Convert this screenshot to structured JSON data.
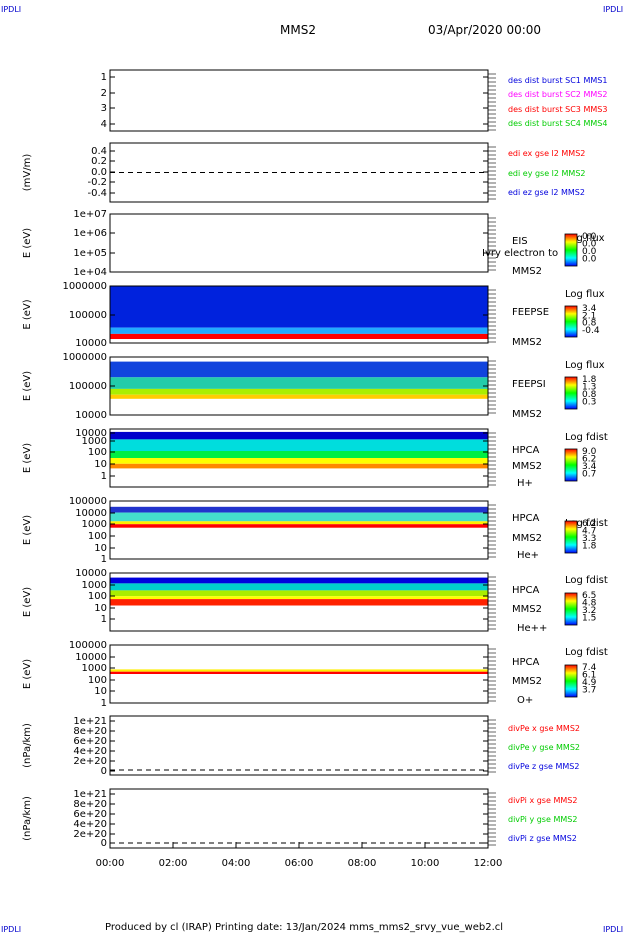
{
  "corner_label": "IPDLI",
  "header": {
    "spacecraft": "MMS2",
    "date": "03/Apr/2020 00:00"
  },
  "footer": "Produced by cl (IRAP)   Printing date: 13/Jan/2024   mms_mms2_srvy_vue_web2.cl",
  "time_axis": {
    "ticks": [
      "00:00",
      "02:00",
      "04:00",
      "06:00",
      "08:00",
      "10:00",
      "12:00"
    ]
  },
  "colors": {
    "blue": "#0000dd",
    "magenta": "#ff00ff",
    "red": "#ff0000",
    "green": "#00cc00",
    "purple": "#0000aa"
  },
  "chart_data": [
    {
      "type": "line",
      "panel": "des-dist-burst",
      "ylabel": "",
      "yticks": [
        "1",
        "2",
        "3",
        "4"
      ],
      "ylim": [
        0.7,
        4.3
      ],
      "legend": [
        {
          "text": "des dist burst SC1 MMS1",
          "color": "#0000dd"
        },
        {
          "text": "des dist burst SC2 MMS2",
          "color": "#ff00ff"
        },
        {
          "text": "des dist burst SC3 MMS3",
          "color": "#ff0000"
        },
        {
          "text": "des dist burst SC4 MMS4",
          "color": "#00cc00"
        }
      ],
      "series": []
    },
    {
      "type": "line",
      "panel": "edi-e",
      "ylabel": "(mV/m)",
      "yticks": [
        "0.4",
        "0.2",
        "0.0",
        "-0.2",
        "-0.4"
      ],
      "ylim": [
        -0.55,
        0.55
      ],
      "zero_line": true,
      "legend": [
        {
          "text": "edi ex gse l2 MMS2",
          "color": "#ff0000"
        },
        {
          "text": "edi ey gse l2 MMS2",
          "color": "#00cc00"
        },
        {
          "text": "edi ez gse l2 MMS2",
          "color": "#0000dd"
        }
      ],
      "series": []
    },
    {
      "type": "heatmap",
      "panel": "eis",
      "ylabel": "E (eV)",
      "yticks": [
        "1e+07",
        "1e+06",
        "1e+05",
        "1e+04"
      ],
      "log": true,
      "labels": [
        "EIS",
        "MMS2"
      ],
      "overlay_text": "Ivry electron to",
      "colorbar": {
        "title": "Log flux",
        "ticks": [
          "0.0",
          "0.0",
          "0.0",
          "0.0"
        ]
      },
      "empty": true
    },
    {
      "type": "heatmap",
      "panel": "feeps-e",
      "ylabel": "E (eV)",
      "yticks": [
        "1000000",
        "100000",
        "10000"
      ],
      "log": true,
      "labels": [
        "FEEPSE",
        "MMS2"
      ],
      "colorbar": {
        "title": "Log flux",
        "ticks": [
          "3.4",
          "2.1",
          "0.8",
          "-0.4"
        ]
      }
    },
    {
      "type": "heatmap",
      "panel": "feeps-i",
      "ylabel": "E (eV)",
      "yticks": [
        "1000000",
        "100000",
        "10000"
      ],
      "log": true,
      "labels": [
        "FEEPSI",
        "MMS2"
      ],
      "colorbar": {
        "title": "Log flux",
        "ticks": [
          "1.8",
          "1.3",
          "0.8",
          "0.3"
        ]
      }
    },
    {
      "type": "heatmap",
      "panel": "hpca-h",
      "ylabel": "E (eV)",
      "yticks": [
        "10000",
        "1000",
        "100",
        "10",
        "1"
      ],
      "log": true,
      "labels": [
        "HPCA",
        "MMS2",
        "H+"
      ],
      "colorbar": {
        "title": "Log fdist",
        "ticks": [
          "9.0",
          "6.2",
          "3.4",
          "0.7"
        ]
      }
    },
    {
      "type": "heatmap",
      "panel": "hpca-he",
      "ylabel": "E (eV)",
      "yticks": [
        "100000",
        "10000",
        "1000",
        "100",
        "10",
        "1"
      ],
      "log": true,
      "labels": [
        "HPCA",
        "MMS2",
        "He+"
      ],
      "colorbar": {
        "title": "Log fdist",
        "ticks": [
          "6.2",
          "4.7",
          "3.3",
          "1.8"
        ]
      }
    },
    {
      "type": "heatmap",
      "panel": "hpca-he2",
      "ylabel": "E (eV)",
      "yticks": [
        "10000",
        "1000",
        "100",
        "10",
        "1"
      ],
      "log": true,
      "labels": [
        "HPCA",
        "MMS2",
        "He++"
      ],
      "colorbar": {
        "title": "Log fdist",
        "ticks": [
          "6.5",
          "4.8",
          "3.2",
          "1.5"
        ]
      }
    },
    {
      "type": "heatmap",
      "panel": "hpca-o",
      "ylabel": "E (eV)",
      "yticks": [
        "100000",
        "10000",
        "1000",
        "100",
        "10",
        "1"
      ],
      "log": true,
      "labels": [
        "HPCA",
        "MMS2",
        "O+"
      ],
      "colorbar": {
        "title": "Log fdist",
        "ticks": [
          "7.4",
          "6.1",
          "4.9",
          "3.7"
        ]
      }
    },
    {
      "type": "line",
      "panel": "divpe",
      "ylabel": "(nPa/km)",
      "yticks": [
        "1e+21",
        "8e+20",
        "6e+20",
        "4e+20",
        "2e+20",
        "0"
      ],
      "zero_line": true,
      "legend": [
        {
          "text": "divPe x gse MMS2",
          "color": "#ff0000"
        },
        {
          "text": "divPe y gse MMS2",
          "color": "#00cc00"
        },
        {
          "text": "divPe z gse MMS2",
          "color": "#0000dd"
        }
      ],
      "series": []
    },
    {
      "type": "line",
      "panel": "divpi",
      "ylabel": "(nPa/km)",
      "yticks": [
        "1e+21",
        "8e+20",
        "6e+20",
        "4e+20",
        "2e+20",
        "0"
      ],
      "zero_line": true,
      "legend": [
        {
          "text": "divPi x gse MMS2",
          "color": "#ff0000"
        },
        {
          "text": "divPi y gse MMS2",
          "color": "#00cc00"
        },
        {
          "text": "divPi z gse MMS2",
          "color": "#0000dd"
        }
      ],
      "series": []
    }
  ]
}
